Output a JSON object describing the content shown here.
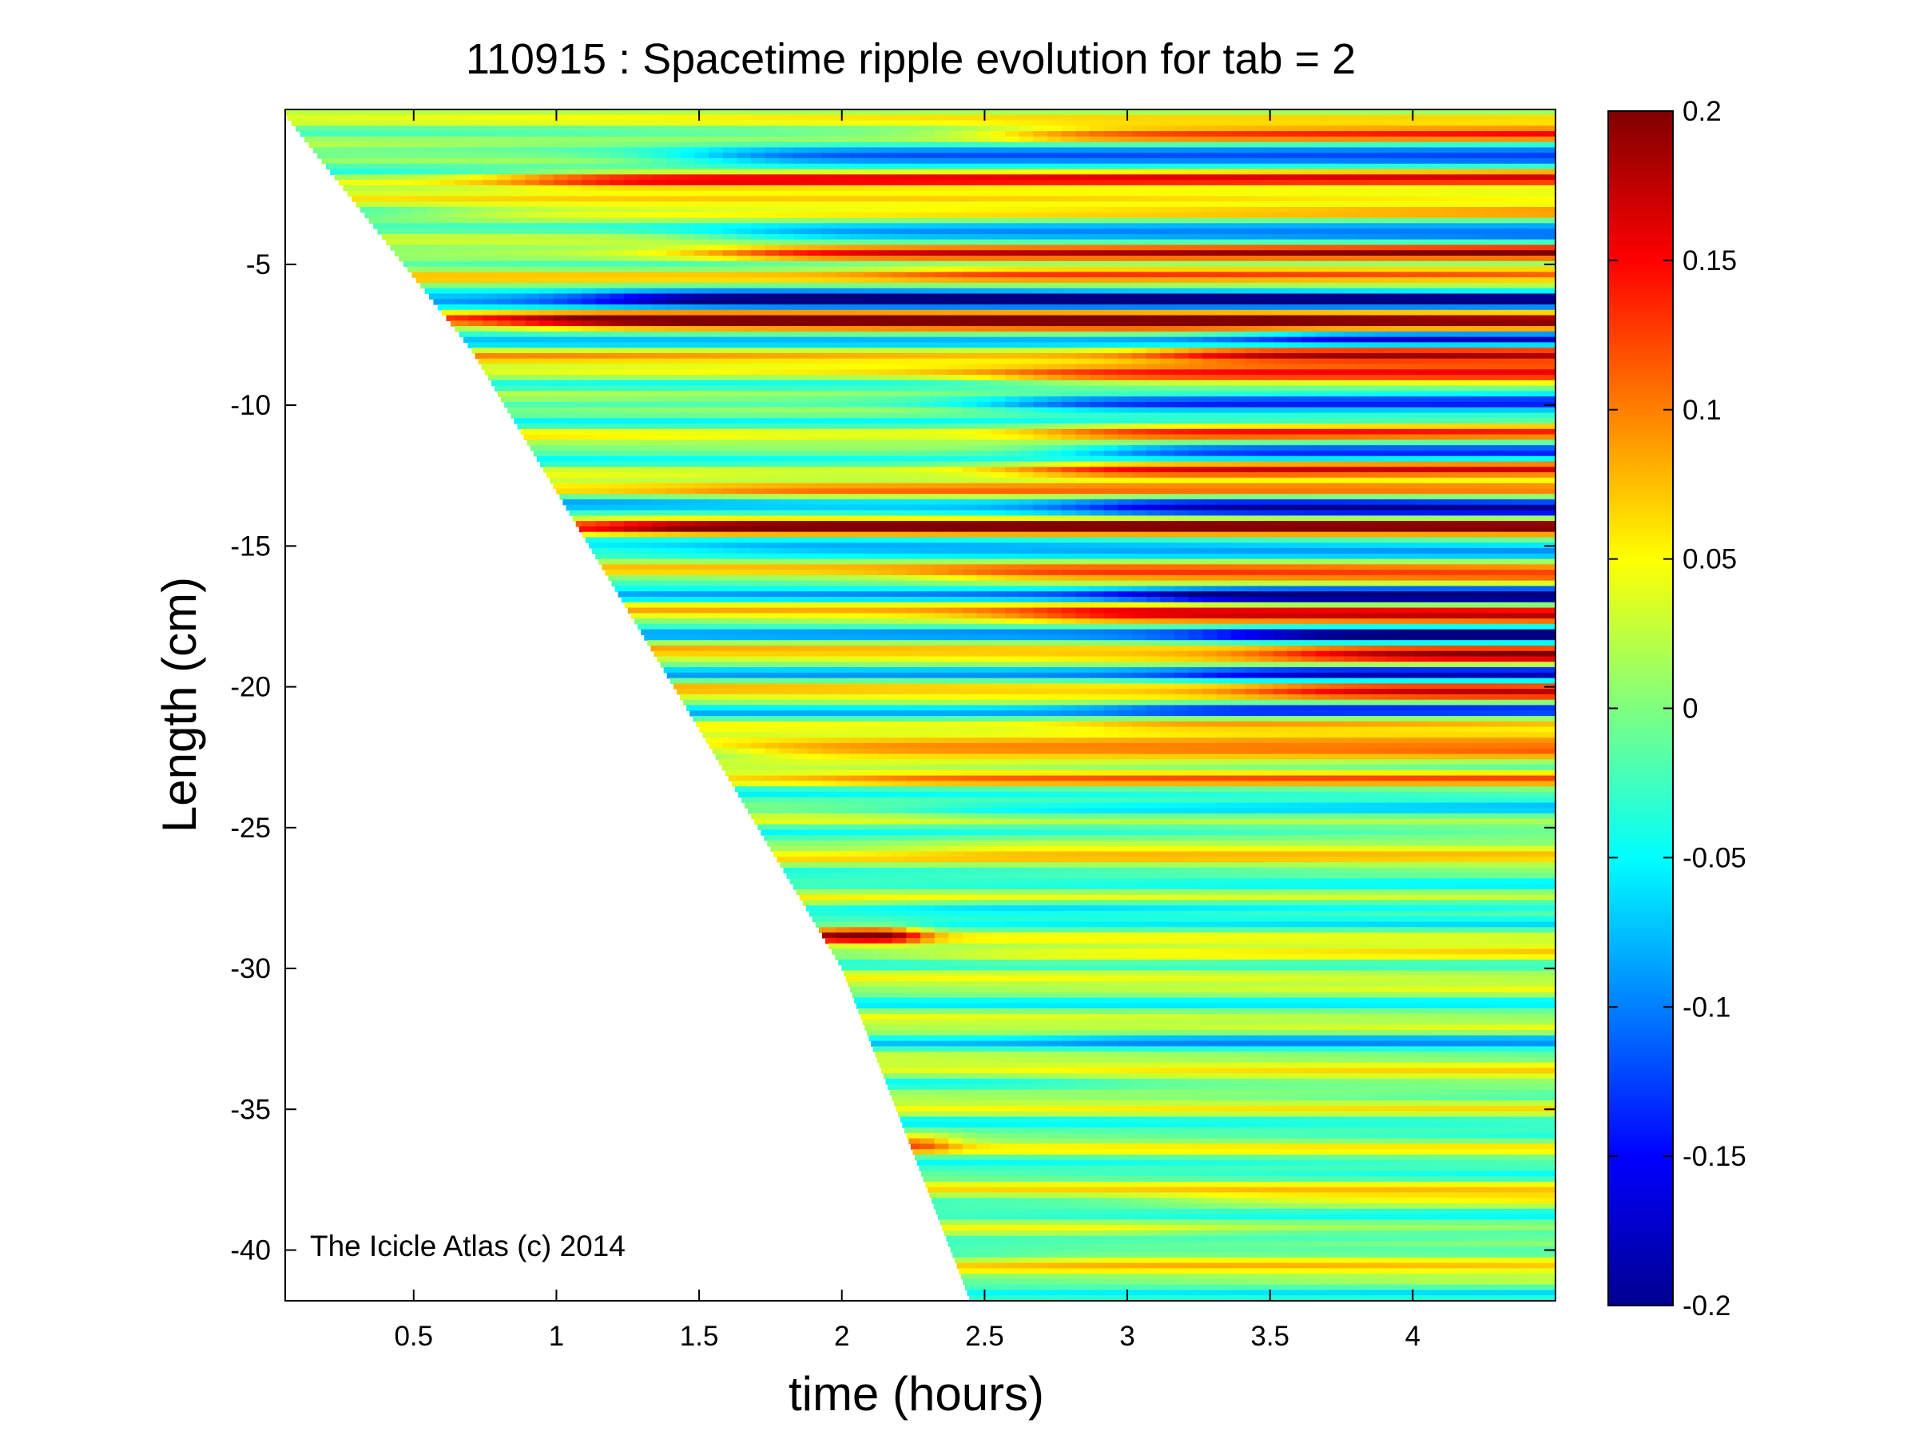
{
  "chart_data": {
    "type": "heatmap",
    "title": "110915 : Spacetime ripple evolution for tab = 2",
    "xlabel": "time (hours)",
    "ylabel": "Length (cm)",
    "xlim": [
      0.05,
      4.5
    ],
    "ylim": [
      -41.8,
      0.5
    ],
    "x_ticks": [
      0.5,
      1,
      1.5,
      2,
      2.5,
      3,
      3.5,
      4
    ],
    "x_tick_labels": [
      "0.5",
      "1",
      "1.5",
      "2",
      "2.5",
      "3",
      "3.5",
      "4"
    ],
    "y_ticks": [
      -5,
      -10,
      -15,
      -20,
      -25,
      -30,
      -35,
      -40
    ],
    "y_tick_labels": [
      "-5",
      "-10",
      "-15",
      "-20",
      "-25",
      "-30",
      "-35",
      "-40"
    ],
    "colorbar": {
      "range": [
        -0.2,
        0.2
      ],
      "ticks": [
        0.2,
        0.15,
        0.1,
        0.05,
        0,
        -0.05,
        -0.1,
        -0.15,
        -0.2
      ],
      "tick_labels": [
        "0.2",
        "0.15",
        "0.1",
        "0.05",
        "0",
        "-0.05",
        "-0.1",
        "-0.15",
        "-0.2"
      ],
      "colormap": "jet"
    },
    "growth_front": [
      [
        0.05,
        0.3
      ],
      [
        0.7,
        -8
      ],
      [
        1.5,
        -21.5
      ],
      [
        2.0,
        -30
      ],
      [
        2.45,
        -41.8
      ]
    ],
    "bands": [
      {
        "y": -0.4,
        "amp": 0.16,
        "onset": 2.6
      },
      {
        "y": -1.2,
        "amp": -0.18,
        "onset": 1.5
      },
      {
        "y": -2.0,
        "amp": 0.2,
        "onset": 0.9
      },
      {
        "y": -3.2,
        "amp": 0.08,
        "onset": 0.6
      },
      {
        "y": -4.0,
        "amp": -0.14,
        "onset": 1.6
      },
      {
        "y": -4.6,
        "amp": 0.18,
        "onset": 1.6
      },
      {
        "y": -5.3,
        "amp": 0.1,
        "onset": 2.2
      },
      {
        "y": -6.2,
        "amp": -0.2,
        "onset": 1.2
      },
      {
        "y": -7.0,
        "amp": 0.2,
        "onset": 0.9
      },
      {
        "y": -7.6,
        "amp": -0.16,
        "onset": 3.5
      },
      {
        "y": -8.2,
        "amp": 0.2,
        "onset": 3.2
      },
      {
        "y": -9.0,
        "amp": 0.14,
        "onset": 2.6
      },
      {
        "y": -10.0,
        "amp": -0.18,
        "onset": 2.6
      },
      {
        "y": -11.0,
        "amp": 0.18,
        "onset": 2.8
      },
      {
        "y": -11.6,
        "amp": -0.2,
        "onset": 2.9
      },
      {
        "y": -12.3,
        "amp": 0.2,
        "onset": 2.7
      },
      {
        "y": -13.1,
        "amp": 0.06,
        "onset": 1.5
      },
      {
        "y": -13.6,
        "amp": -0.18,
        "onset": 2.9
      },
      {
        "y": -14.3,
        "amp": 0.18,
        "onset": 1.2
      },
      {
        "y": -15.0,
        "amp": -0.06,
        "onset": 1.5
      },
      {
        "y": -16.0,
        "amp": 0.1,
        "onset": 2.4
      },
      {
        "y": -16.8,
        "amp": -0.2,
        "onset": 3.1
      },
      {
        "y": -17.4,
        "amp": 0.16,
        "onset": 2.7
      },
      {
        "y": -18.2,
        "amp": -0.18,
        "onset": 3.4
      },
      {
        "y": -18.8,
        "amp": 0.18,
        "onset": 3.6
      },
      {
        "y": -19.6,
        "amp": -0.14,
        "onset": 3.3
      },
      {
        "y": -20.1,
        "amp": 0.18,
        "onset": 3.5
      },
      {
        "y": -20.8,
        "amp": -0.12,
        "onset": 3.0
      },
      {
        "y": -21.3,
        "amp": 0.1,
        "onset": 2.9
      },
      {
        "y": -22.3,
        "amp": 0.15,
        "onset": 1.6
      },
      {
        "y": -23.3,
        "amp": 0.06,
        "onset": 2.0
      },
      {
        "y": -24.5,
        "amp": -0.07,
        "onset": 2.3
      },
      {
        "y": -25.7,
        "amp": 0.07,
        "onset": 2.3
      },
      {
        "y": -27.8,
        "amp": -0.06,
        "onset": 2.2
      },
      {
        "y": -28.8,
        "amp": 0.2,
        "onset": 1.9,
        "offset": 2.25
      },
      {
        "y": -29.6,
        "amp": 0.06,
        "onset": 2.3
      },
      {
        "y": -32.5,
        "amp": -0.05,
        "onset": 2.8
      },
      {
        "y": -34.0,
        "amp": 0.05,
        "onset": 2.8
      },
      {
        "y": -36.2,
        "amp": 0.15,
        "onset": 2.25,
        "offset": 2.35
      },
      {
        "y": -38.2,
        "amp": 0.06,
        "onset": 3.2
      },
      {
        "y": -39.3,
        "amp": -0.05,
        "onset": 3.2
      },
      {
        "y": -40.3,
        "amp": 0.06,
        "onset": 2.6
      }
    ]
  },
  "watermark": "The Icicle Atlas (c) 2014"
}
